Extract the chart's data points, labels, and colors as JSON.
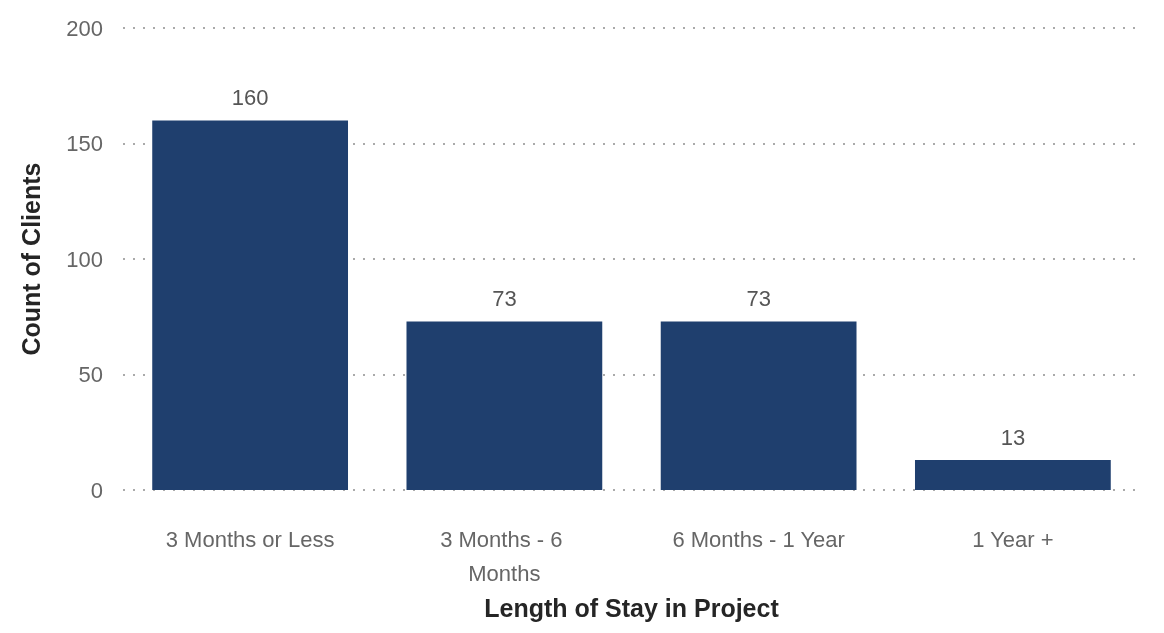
{
  "chart_data": {
    "type": "bar",
    "xlabel": "Length of Stay in Project",
    "ylabel": "Count of Clients",
    "categories": [
      "3 Months or Less",
      "3 Months - 6 Months",
      "6 Months - 1 Year",
      "1 Year +"
    ],
    "values": [
      160,
      73,
      73,
      13
    ],
    "color": "#1f3f6e",
    "ylim": [
      0,
      200
    ],
    "yticks": [
      0,
      50,
      100,
      150,
      200
    ],
    "grid": "y",
    "data_labels": true
  }
}
